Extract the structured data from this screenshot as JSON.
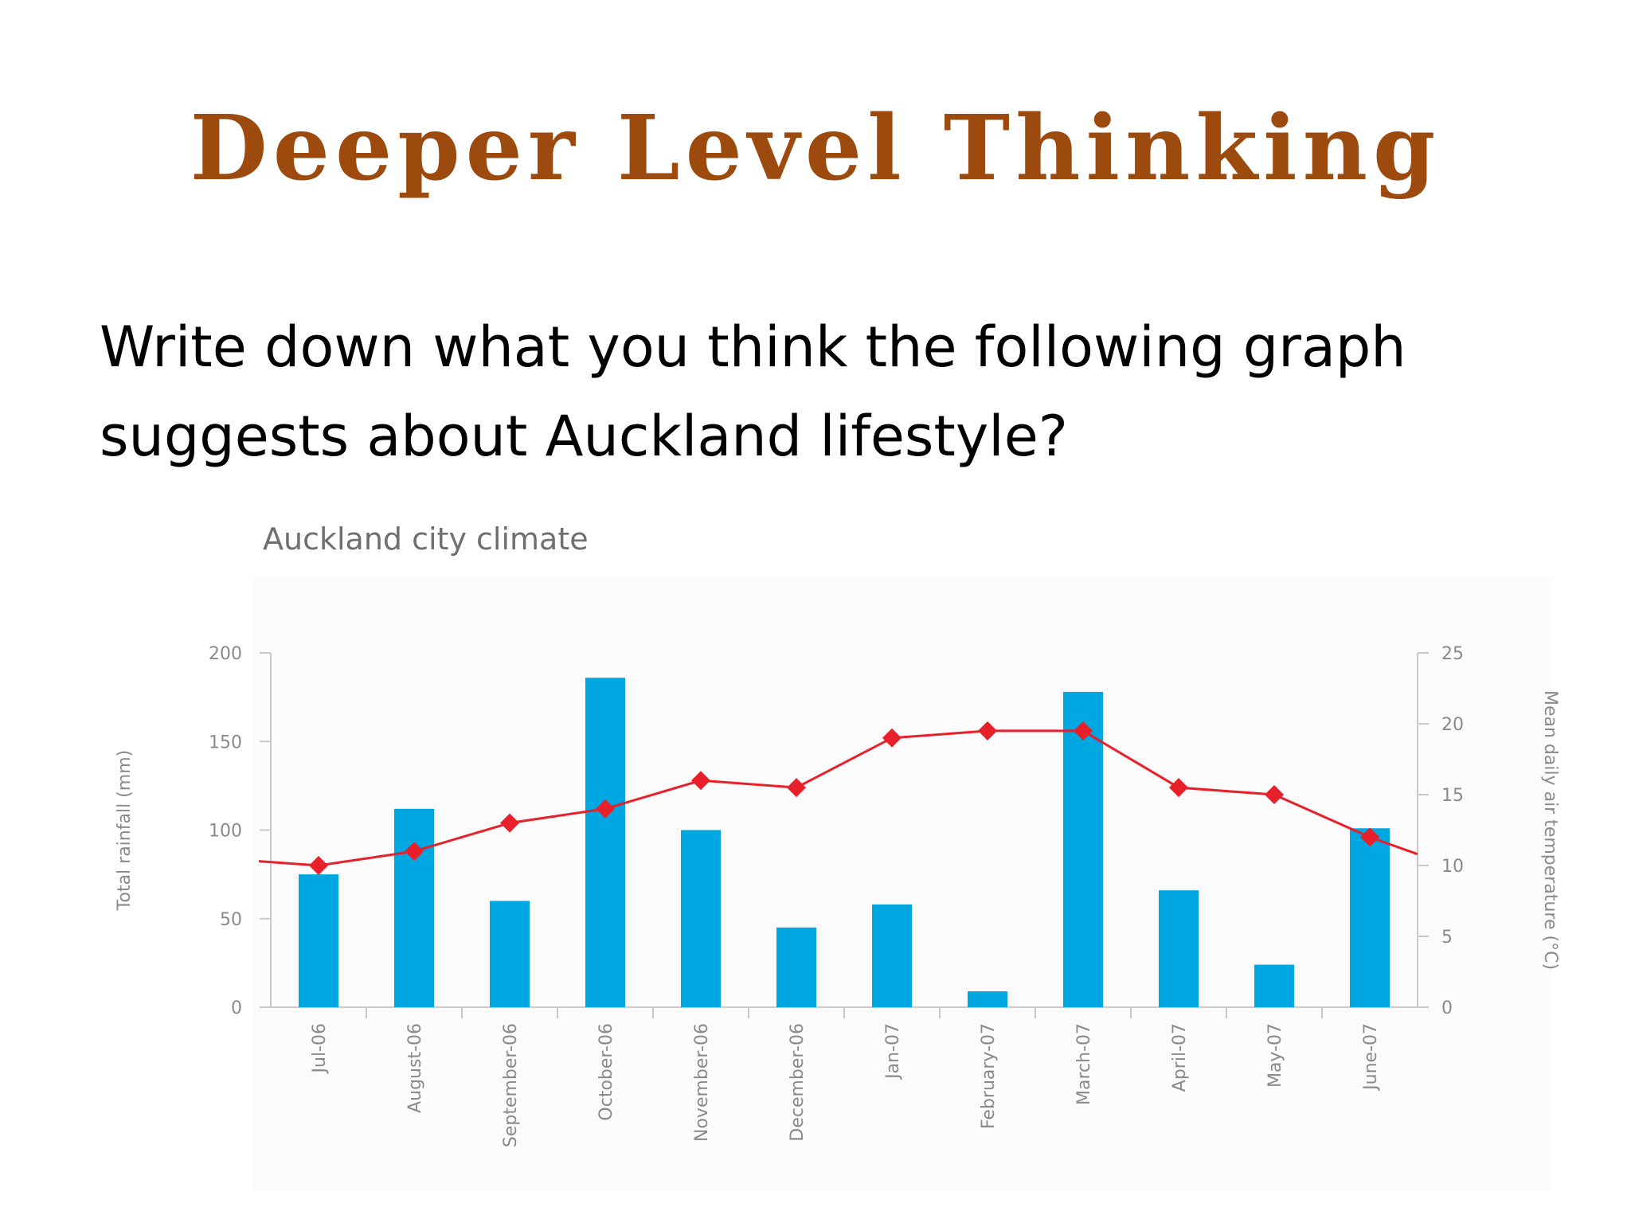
{
  "slide": {
    "title": "Deeper Level Thinking",
    "question_line1": "Write down what you think the following graph",
    "question_line2": "suggests about Auckland lifestyle?"
  },
  "chart_data": {
    "type": "bar",
    "title": "Auckland city climate",
    "categories": [
      "Jul-06",
      "August-06",
      "September-06",
      "October-06",
      "November-06",
      "December-06",
      "Jan-07",
      "February-07",
      "March-07",
      "April-07",
      "May-07",
      "June-07"
    ],
    "series": [
      {
        "type": "bar",
        "axis": "left",
        "color": "#00a7e1",
        "values": [
          75,
          112,
          60,
          186,
          100,
          45,
          58,
          9,
          178,
          66,
          24,
          101
        ]
      },
      {
        "type": "line",
        "axis": "right",
        "color": "#e8202a",
        "values": [
          10,
          11,
          13,
          14,
          16,
          15.5,
          19,
          19.5,
          19.5,
          15.5,
          15,
          12
        ],
        "line_extends_left_to": 10.3,
        "line_extends_right_to": 10.8
      }
    ],
    "ylabel": "Total rainfall (mm)",
    "ylabel_right": "Mean daily air temperature (°C)",
    "ylim": [
      0,
      200
    ],
    "yticks": [
      0,
      50,
      100,
      150,
      200
    ],
    "ylim_right": [
      0,
      25
    ],
    "yticks_right": [
      0,
      5,
      10,
      15,
      20,
      25
    ],
    "legend": "none",
    "grid": false
  }
}
